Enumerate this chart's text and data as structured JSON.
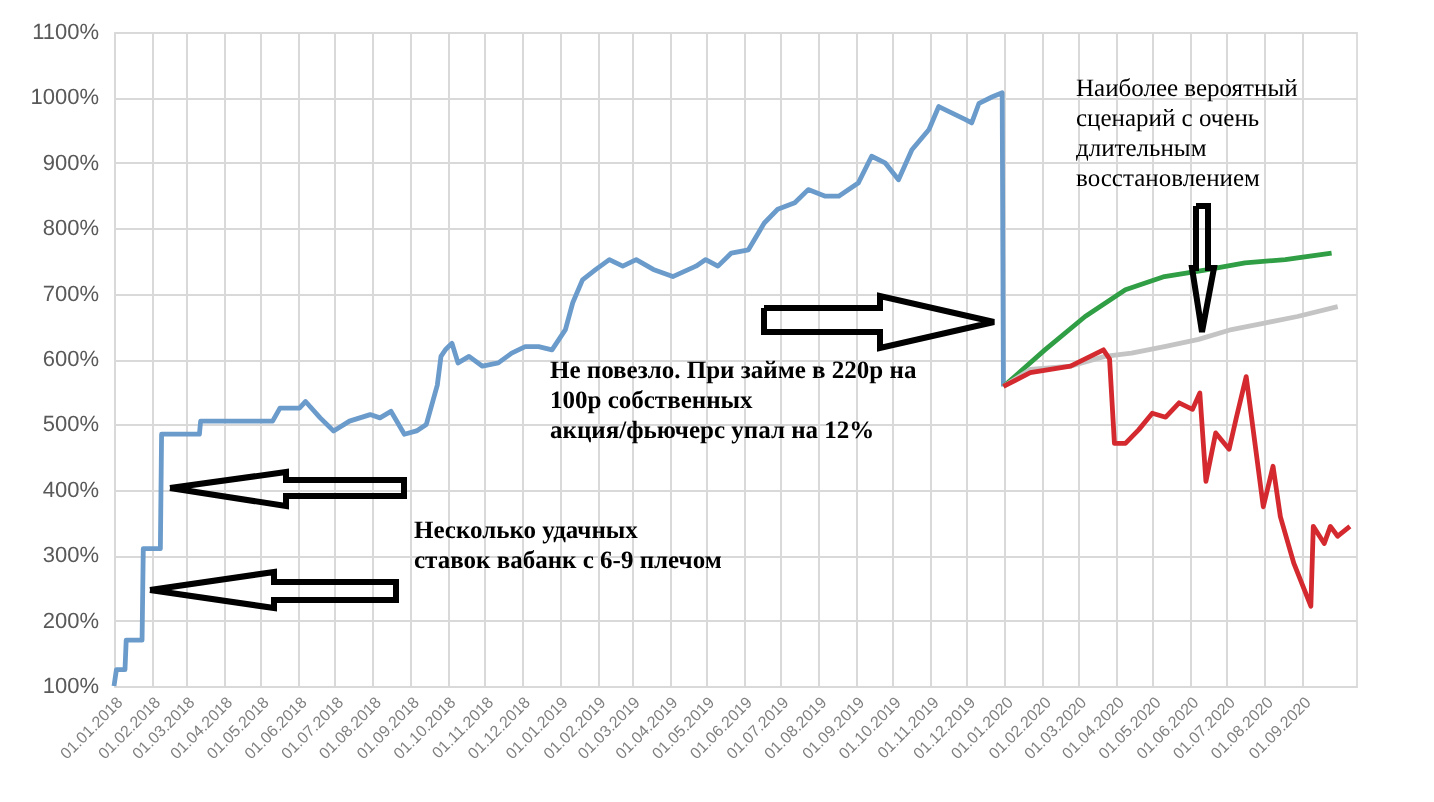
{
  "chart_data": {
    "type": "line",
    "annotations": [
      "Наиболее вероятный\nсценарий с очень\nдлительным\nвосстановлением",
      "Не повезло. При займе в 220р на\n100р собственных\nакция/фьючерс упал на 12%",
      "Несколько удачных\nставок вабанк с 6-9 плечом"
    ],
    "series": [
      {
        "color": "#6a9bcb",
        "x": [
          "2018-01-01",
          "2018-01-03",
          "2018-01-10",
          "2018-01-11",
          "2018-01-24",
          "2018-01-25",
          "2018-02-08",
          "2018-02-09",
          "2018-03-12",
          "2018-03-13",
          "2018-05-11",
          "2018-05-17",
          "2018-06-02",
          "2018-06-07",
          "2018-06-19",
          "2018-06-30",
          "2018-07-13",
          "2018-07-30",
          "2018-08-07",
          "2018-08-16",
          "2018-08-27",
          "2018-09-06",
          "2018-09-14",
          "2018-09-23",
          "2018-09-26",
          "2018-09-30",
          "2018-10-05",
          "2018-10-10",
          "2018-10-19",
          "2018-10-30",
          "2018-11-12",
          "2018-11-23",
          "2018-12-04",
          "2018-12-15",
          "2018-12-26",
          "2019-01-06",
          "2019-01-12",
          "2019-01-20",
          "2019-01-31",
          "2019-02-11",
          "2019-02-22",
          "2019-03-05",
          "2019-03-19",
          "2019-04-04",
          "2019-04-23",
          "2019-05-01",
          "2019-05-11",
          "2019-05-22",
          "2019-06-05",
          "2019-06-18",
          "2019-06-29",
          "2019-07-13",
          "2019-07-24",
          "2019-08-07",
          "2019-08-18",
          "2019-09-03",
          "2019-09-14",
          "2019-09-25",
          "2019-10-06",
          "2019-10-17",
          "2019-10-31",
          "2019-11-08",
          "2019-11-19",
          "2019-11-30",
          "2019-12-05",
          "2019-12-11",
          "2019-12-22",
          "2019-12-30",
          "2019-12-31"
        ],
        "values": [
          100,
          125,
          125,
          170,
          170,
          310,
          310,
          485,
          485,
          505,
          505,
          525,
          525,
          535,
          510,
          490,
          505,
          515,
          510,
          520,
          485,
          490,
          500,
          560,
          604,
          615,
          624,
          594,
          604,
          589,
          594,
          609,
          619,
          619,
          614,
          645,
          686,
          721,
          737,
          752,
          742,
          752,
          737,
          726,
          742,
          752,
          742,
          762,
          767,
          808,
          829,
          839,
          859,
          849,
          849,
          869,
          910,
          900,
          874,
          920,
          951,
          986,
          976,
          966,
          961,
          991,
          1001,
          1007,
          558
        ]
      },
      {
        "color": "#2f9e44",
        "x": [
          "2019-12-31",
          "2020-02-03",
          "2020-03-07",
          "2020-04-09",
          "2020-05-11",
          "2020-06-13",
          "2020-07-16",
          "2020-08-18",
          "2020-09-25"
        ],
        "values": [
          558,
          614,
          665,
          706,
          726,
          736,
          747,
          752,
          762
        ]
      },
      {
        "color": "#c4c4c4",
        "x": [
          "2019-12-31",
          "2020-01-22",
          "2020-02-24",
          "2020-03-23",
          "2020-04-14",
          "2020-05-11",
          "2020-06-08",
          "2020-07-05",
          "2020-08-01",
          "2020-08-28",
          "2020-09-30"
        ],
        "values": [
          558,
          584,
          589,
          604,
          609,
          619,
          630,
          645,
          655,
          665,
          680
        ]
      },
      {
        "color": "#d42a2f",
        "x": [
          "2019-12-31",
          "2020-01-22",
          "2020-02-24",
          "2020-03-22",
          "2020-03-27",
          "2020-03-31",
          "2020-04-09",
          "2020-04-20",
          "2020-05-01",
          "2020-05-12",
          "2020-05-23",
          "2020-06-03",
          "2020-06-09",
          "2020-06-14",
          "2020-06-22",
          "2020-07-03",
          "2020-07-09",
          "2020-07-17",
          "2020-07-31",
          "2020-08-08",
          "2020-08-14",
          "2020-08-25",
          "2020-09-08",
          "2020-09-10",
          "2020-09-19",
          "2020-09-24",
          "2020-09-30",
          "2020-10-10"
        ],
        "values": [
          558,
          579,
          589,
          614,
          600,
          471,
          471,
          492,
          517,
          511,
          533,
          523,
          548,
          413,
          487,
          462,
          511,
          573,
          374,
          436,
          359,
          288,
          222,
          344,
          318,
          344,
          329,
          344
        ]
      }
    ],
    "xlim": [
      "2018-01-01",
      "2020-10-15"
    ],
    "xticks": [
      {
        "value": "2018-01-01",
        "label": "01.01.2018"
      },
      {
        "value": "2018-02-01",
        "label": "01.02.2018"
      },
      {
        "value": "2018-03-01",
        "label": "01.03.2018"
      },
      {
        "value": "2018-04-01",
        "label": "01.04.2018"
      },
      {
        "value": "2018-05-01",
        "label": "01.05.2018"
      },
      {
        "value": "2018-06-01",
        "label": "01.06.2018"
      },
      {
        "value": "2018-07-01",
        "label": "01.07.2018"
      },
      {
        "value": "2018-08-01",
        "label": "01.08.2018"
      },
      {
        "value": "2018-09-01",
        "label": "01.09.2018"
      },
      {
        "value": "2018-10-01",
        "label": "01.10.2018"
      },
      {
        "value": "2018-11-01",
        "label": "01.11.2018"
      },
      {
        "value": "2018-12-01",
        "label": "01.12.2018"
      },
      {
        "value": "2019-01-01",
        "label": "01.01.2019"
      },
      {
        "value": "2019-02-01",
        "label": "01.02.2019"
      },
      {
        "value": "2019-03-01",
        "label": "01.03.2019"
      },
      {
        "value": "2019-04-01",
        "label": "01.04.2019"
      },
      {
        "value": "2019-05-01",
        "label": "01.05.2019"
      },
      {
        "value": "2019-06-01",
        "label": "01.06.2019"
      },
      {
        "value": "2019-07-01",
        "label": "01.07.2019"
      },
      {
        "value": "2019-08-01",
        "label": "01.08.2019"
      },
      {
        "value": "2019-09-01",
        "label": "01.09.2019"
      },
      {
        "value": "2019-10-01",
        "label": "01.10.2019"
      },
      {
        "value": "2019-11-01",
        "label": "01.11.2019"
      },
      {
        "value": "2019-12-01",
        "label": "01.12.2019"
      },
      {
        "value": "2020-01-01",
        "label": "01.01.2020"
      },
      {
        "value": "2020-02-01",
        "label": "01.02.2020"
      },
      {
        "value": "2020-03-01",
        "label": "01.03.2020"
      },
      {
        "value": "2020-04-01",
        "label": "01.04.2020"
      },
      {
        "value": "2020-05-01",
        "label": "01.05.2020"
      },
      {
        "value": "2020-06-01",
        "label": "01.06.2020"
      },
      {
        "value": "2020-07-01",
        "label": "01.07.2020"
      },
      {
        "value": "2020-08-01",
        "label": "01.08.2020"
      },
      {
        "value": "2020-09-01",
        "label": "01.09.2020"
      }
    ],
    "ylim": [
      100,
      1100
    ],
    "yticks": [
      {
        "value": 100,
        "label": "100%"
      },
      {
        "value": 200,
        "label": "200%"
      },
      {
        "value": 300,
        "label": "300%"
      },
      {
        "value": 400,
        "label": "400%"
      },
      {
        "value": 500,
        "label": "500%"
      },
      {
        "value": 600,
        "label": "600%"
      },
      {
        "value": 700,
        "label": "700%"
      },
      {
        "value": 800,
        "label": "800%"
      },
      {
        "value": 900,
        "label": "900%"
      },
      {
        "value": 1000,
        "label": "1000%"
      },
      {
        "value": 1100,
        "label": "1100%"
      }
    ],
    "grid": true
  }
}
